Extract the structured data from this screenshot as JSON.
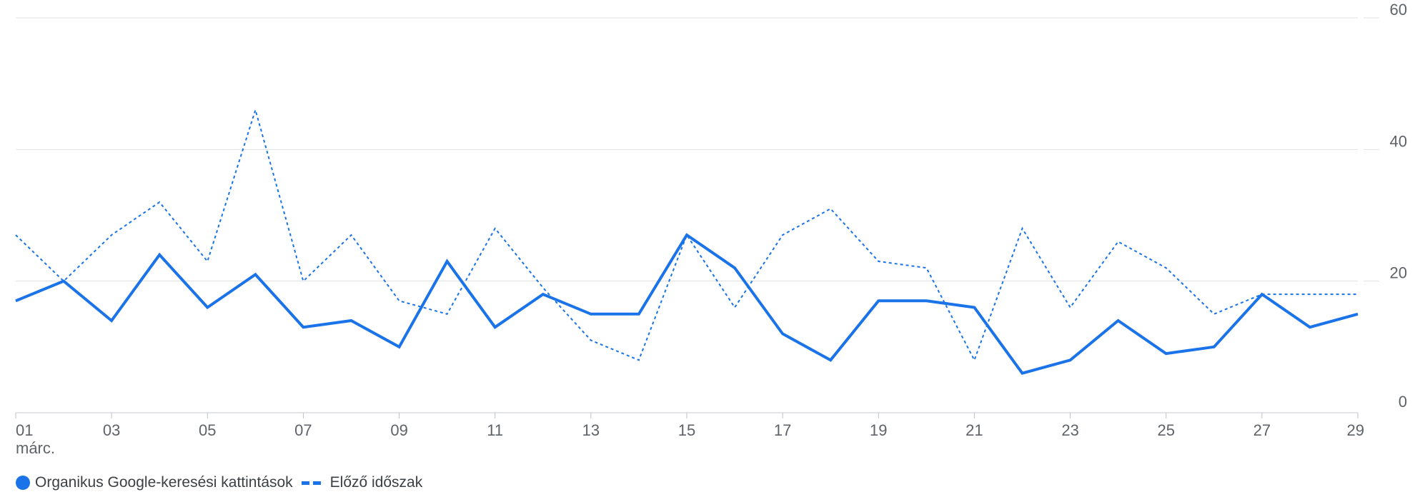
{
  "chart_data": {
    "type": "line",
    "x": [
      "01",
      "02",
      "03",
      "04",
      "05",
      "06",
      "07",
      "08",
      "09",
      "10",
      "11",
      "12",
      "13",
      "14",
      "15",
      "16",
      "17",
      "18",
      "19",
      "20",
      "21",
      "22",
      "23",
      "24",
      "25",
      "26",
      "27",
      "28",
      "29"
    ],
    "x_tick_labels": [
      "01",
      "03",
      "05",
      "07",
      "09",
      "11",
      "13",
      "15",
      "17",
      "19",
      "21",
      "23",
      "25",
      "27",
      "29"
    ],
    "x_month_label": "márc.",
    "series": [
      {
        "name": "Organikus Google-keresési kattintások",
        "style": "solid",
        "color": "#1a73e8",
        "values": [
          17,
          20,
          14,
          24,
          16,
          21,
          13,
          14,
          10,
          23,
          13,
          18,
          15,
          15,
          27,
          22,
          12,
          8,
          17,
          17,
          16,
          6,
          8,
          14,
          9,
          10,
          18,
          13,
          15
        ]
      },
      {
        "name": "Előző időszak",
        "style": "dashed",
        "color": "#1a73e8",
        "values": [
          27,
          20,
          27,
          32,
          23,
          46,
          20,
          27,
          17,
          15,
          28,
          19,
          11,
          8,
          27,
          16,
          27,
          31,
          23,
          22,
          8,
          28,
          16,
          26,
          22,
          15,
          18,
          18,
          18
        ]
      }
    ],
    "ylim": [
      0,
      60
    ],
    "y_ticks": [
      0,
      20,
      40,
      60
    ],
    "y_axis_side": "right",
    "grid": true,
    "legend_position": "bottom-left"
  },
  "legend": {
    "series1_label": "Organikus Google-keresési kattintások",
    "series2_label": "Előző időszak"
  }
}
